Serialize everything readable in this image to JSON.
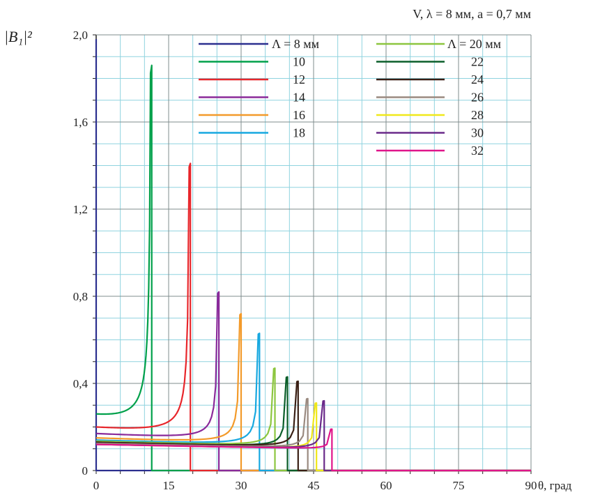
{
  "chart_data": {
    "type": "line",
    "title": "V, λ = 8 мм, a = 0,7 мм",
    "ylabel": "|B₁|²",
    "xlabel": "θ, град",
    "xlim": [
      0,
      90
    ],
    "ylim": [
      0,
      2.0
    ],
    "x_ticks": [
      "0",
      "15",
      "30",
      "45",
      "60",
      "75",
      "90"
    ],
    "y_ticks": [
      "0",
      "0,4",
      "0,8",
      "1,2",
      "1,6",
      "2,0"
    ],
    "grid": true,
    "legend_placement": "top",
    "series": [
      {
        "name": "Λ = 8 мм",
        "color": "#2b2f8f",
        "start": 0.14,
        "peak_theta": 0.0,
        "peak": 1.98
      },
      {
        "name": "10",
        "color": "#00a04a",
        "start": 0.26,
        "peak_theta": 11.5,
        "peak": 1.86
      },
      {
        "name": "12",
        "color": "#e8262b",
        "start": 0.2,
        "peak_theta": 19.5,
        "peak": 1.41
      },
      {
        "name": "14",
        "color": "#8a2a9a",
        "start": 0.17,
        "peak_theta": 25.4,
        "peak": 0.82
      },
      {
        "name": "16",
        "color": "#f39a2a",
        "start": 0.15,
        "peak_theta": 30.0,
        "peak": 0.72
      },
      {
        "name": "18",
        "color": "#17a8e0",
        "start": 0.14,
        "peak_theta": 33.8,
        "peak": 0.63
      },
      {
        "name": "Λ = 20 мм",
        "color": "#8cc63f",
        "start": 0.135,
        "peak_theta": 37.0,
        "peak": 0.47
      },
      {
        "name": "22",
        "color": "#0a5e2a",
        "start": 0.13,
        "peak_theta": 39.6,
        "peak": 0.43
      },
      {
        "name": "24",
        "color": "#3a1f14",
        "start": 0.13,
        "peak_theta": 41.8,
        "peak": 0.41
      },
      {
        "name": "26",
        "color": "#9a8a80",
        "start": 0.125,
        "peak_theta": 43.8,
        "peak": 0.33
      },
      {
        "name": "28",
        "color": "#f0e81a",
        "start": 0.12,
        "peak_theta": 45.6,
        "peak": 0.31
      },
      {
        "name": "30",
        "color": "#6a2a8a",
        "start": 0.12,
        "peak_theta": 47.2,
        "peak": 0.32
      },
      {
        "name": "32",
        "color": "#e0158a",
        "start": 0.12,
        "peak_theta": 48.8,
        "peak": 0.19
      }
    ]
  }
}
